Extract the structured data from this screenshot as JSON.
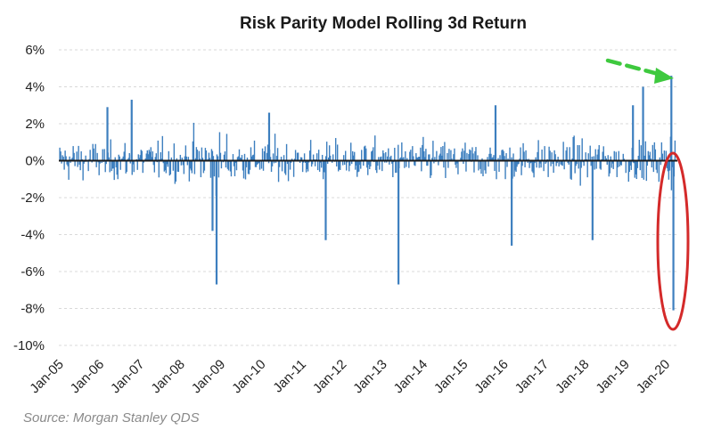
{
  "chart_data": {
    "type": "bar",
    "title": "Risk Parity Model Rolling 3d Return",
    "source": "Source: Morgan Stanley QDS",
    "xlabel": "",
    "ylabel": "",
    "ylim": [
      -10,
      6
    ],
    "yticks": [
      6,
      4,
      2,
      0,
      -2,
      -4,
      -6,
      -8,
      -10
    ],
    "ytick_labels": [
      "6%",
      "4%",
      "2%",
      "0%",
      "-2%",
      "-4%",
      "-6%",
      "-8%",
      "-10%"
    ],
    "x_range": [
      2005.0,
      2020.3
    ],
    "xticks": [
      2005,
      2006,
      2007,
      2008,
      2009,
      2010,
      2011,
      2012,
      2013,
      2014,
      2015,
      2016,
      2017,
      2018,
      2019,
      2020
    ],
    "xtick_labels": [
      "Jan-05",
      "Jan-06",
      "Jan-07",
      "Jan-08",
      "Jan-09",
      "Jan-10",
      "Jan-11",
      "Jan-12",
      "Jan-13",
      "Jan-14",
      "Jan-15",
      "Jan-16",
      "Jan-17",
      "Jan-18",
      "Jan-19",
      "Jan-20"
    ],
    "grid": true,
    "color": "#3d7fbf",
    "annotation_colors": {
      "arrow": "#3ec93e",
      "ellipse": "#d42a2a"
    },
    "extremes": [
      {
        "x": 2008.9,
        "value": -6.7
      },
      {
        "x": 2008.8,
        "value": -3.8
      },
      {
        "x": 2011.6,
        "value": -4.3
      },
      {
        "x": 2013.4,
        "value": -6.7
      },
      {
        "x": 2016.2,
        "value": -4.6
      },
      {
        "x": 2018.2,
        "value": -4.3
      },
      {
        "x": 2019.45,
        "value": 4.0
      },
      {
        "x": 2020.15,
        "value": 4.6
      },
      {
        "x": 2020.2,
        "value": -8.1
      },
      {
        "x": 2006.2,
        "value": 2.9
      },
      {
        "x": 2006.8,
        "value": 3.3
      },
      {
        "x": 2010.2,
        "value": 2.6
      },
      {
        "x": 2015.8,
        "value": 3.0
      },
      {
        "x": 2019.2,
        "value": 3.0
      }
    ]
  }
}
